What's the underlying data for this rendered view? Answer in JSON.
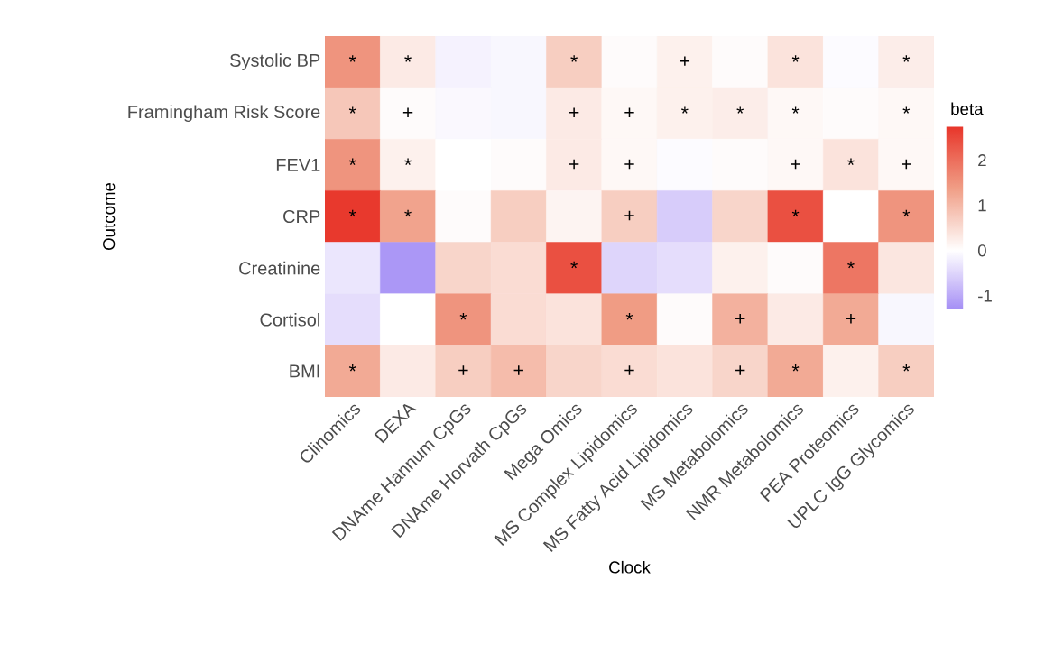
{
  "chart_data": {
    "type": "heatmap",
    "xlabel": "Clock",
    "ylabel": "Outcome",
    "clabel": "beta",
    "categories": [
      "Clinomics",
      "DEXA",
      "DNAme Hannum CpGs",
      "DNAme Horvath CpGs",
      "Mega Omics",
      "MS Complex Lipidomics",
      "MS Fatty Acid Lipidomics",
      "MS Metabolomics",
      "NMR Metabolomics",
      "PEA Proteomics",
      "UPLC IgG Glycomics"
    ],
    "y_categories": [
      "Systolic BP",
      "Framingham Risk Score",
      "FEV1",
      "CRP",
      "Creatinine",
      "Cortisol",
      "BMI"
    ],
    "cells": [
      [
        1.5,
        0.3,
        -0.15,
        -0.1,
        0.7,
        0.05,
        0.2,
        0.05,
        0.4,
        -0.05,
        0.25
      ],
      [
        0.8,
        0.05,
        -0.08,
        -0.1,
        0.3,
        0.1,
        0.2,
        0.25,
        0.1,
        0.05,
        0.1
      ],
      [
        1.5,
        0.2,
        0.0,
        0.05,
        0.3,
        0.1,
        -0.05,
        0.05,
        0.1,
        0.4,
        0.1
      ],
      [
        2.7,
        1.3,
        0.05,
        0.7,
        0.15,
        0.7,
        -0.6,
        0.6,
        2.4,
        0.0,
        1.5
      ],
      [
        -0.3,
        -1.2,
        0.6,
        0.5,
        2.4,
        -0.5,
        -0.4,
        0.2,
        0.05,
        1.9,
        0.35
      ],
      [
        -0.4,
        0.0,
        1.5,
        0.5,
        0.4,
        1.4,
        0.05,
        1.1,
        0.3,
        1.2,
        -0.1
      ],
      [
        1.2,
        0.3,
        0.7,
        0.95,
        0.6,
        0.5,
        0.4,
        0.6,
        1.2,
        0.2,
        0.7
      ]
    ],
    "cell_labels": [
      [
        "*",
        "*",
        null,
        null,
        "*",
        null,
        "+",
        null,
        "*",
        null,
        "*"
      ],
      [
        "*",
        "+",
        null,
        null,
        "+",
        "+",
        "*",
        "*",
        "*",
        null,
        "*"
      ],
      [
        "*",
        "*",
        null,
        null,
        "+",
        "+",
        null,
        null,
        "+",
        "*",
        "+"
      ],
      [
        "*",
        "*",
        null,
        null,
        null,
        "+",
        null,
        null,
        "*",
        null,
        "*"
      ],
      [
        null,
        null,
        null,
        null,
        "*",
        null,
        null,
        null,
        null,
        "*",
        null
      ],
      [
        null,
        null,
        "*",
        null,
        null,
        "*",
        null,
        "+",
        null,
        "+",
        null
      ],
      [
        "*",
        null,
        "+",
        "+",
        null,
        "+",
        null,
        "+",
        "*",
        null,
        "*"
      ]
    ],
    "clim": [
      -1.3,
      2.75
    ],
    "cticks": [
      -1,
      0,
      1,
      2
    ]
  }
}
